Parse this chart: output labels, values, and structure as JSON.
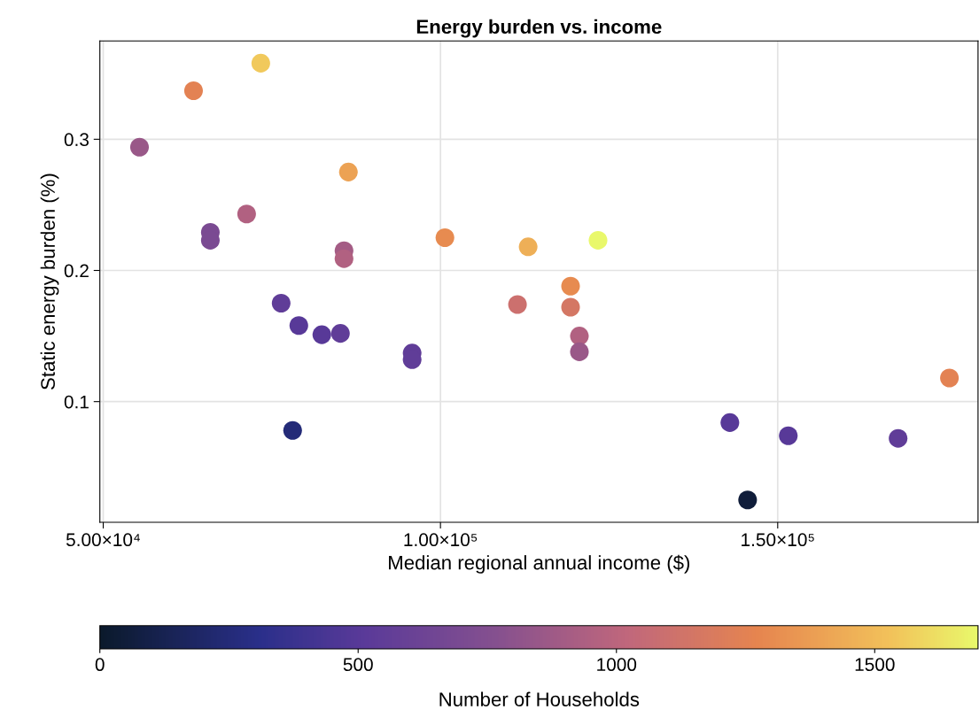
{
  "chart_data": {
    "type": "scatter",
    "title": "Energy burden vs. income",
    "xlabel": "Median regional annual income ($)",
    "ylabel": "Static energy burden (%)",
    "clabel": "Number of Households",
    "x": [
      55380,
      63390,
      73360,
      65880,
      65880,
      71260,
      76380,
      78080,
      79000,
      82410,
      85170,
      86350,
      85700,
      85700,
      95800,
      95800,
      100660,
      111420,
      113000,
      123360,
      119290,
      119290,
      120600,
      120600,
      142910,
      151570,
      145540,
      167850,
      175460
    ],
    "values": [
      0.294,
      0.337,
      0.358,
      0.229,
      0.223,
      0.243,
      0.175,
      0.078,
      0.158,
      0.151,
      0.152,
      0.275,
      0.215,
      0.209,
      0.137,
      0.132,
      0.225,
      0.174,
      0.218,
      0.223,
      0.188,
      0.172,
      0.15,
      0.138,
      0.084,
      0.074,
      0.025,
      0.072,
      0.118
    ],
    "cvalues": [
      850,
      1250,
      1550,
      700,
      700,
      950,
      550,
      250,
      500,
      500,
      550,
      1400,
      900,
      950,
      550,
      550,
      1300,
      1100,
      1450,
      1700,
      1300,
      1150,
      950,
      850,
      500,
      500,
      50,
      550,
      1250
    ],
    "xlim": [
      49500,
      179700
    ],
    "xticks": [
      {
        "value": 50000,
        "label": "5.00×10⁴"
      },
      {
        "value": 100000,
        "label": "1.00×10⁵"
      },
      {
        "value": 150000,
        "label": "1.50×10⁵"
      }
    ],
    "ylim": [
      0.008,
      0.375
    ],
    "yticks": [
      {
        "value": 0.1,
        "label": "0.1"
      },
      {
        "value": 0.2,
        "label": "0.2"
      },
      {
        "value": 0.3,
        "label": "0.3"
      }
    ],
    "clim": [
      0,
      1700
    ],
    "cticks": [
      0,
      500,
      1000,
      1500
    ],
    "grid": true,
    "marker": "circle",
    "legend": false
  }
}
